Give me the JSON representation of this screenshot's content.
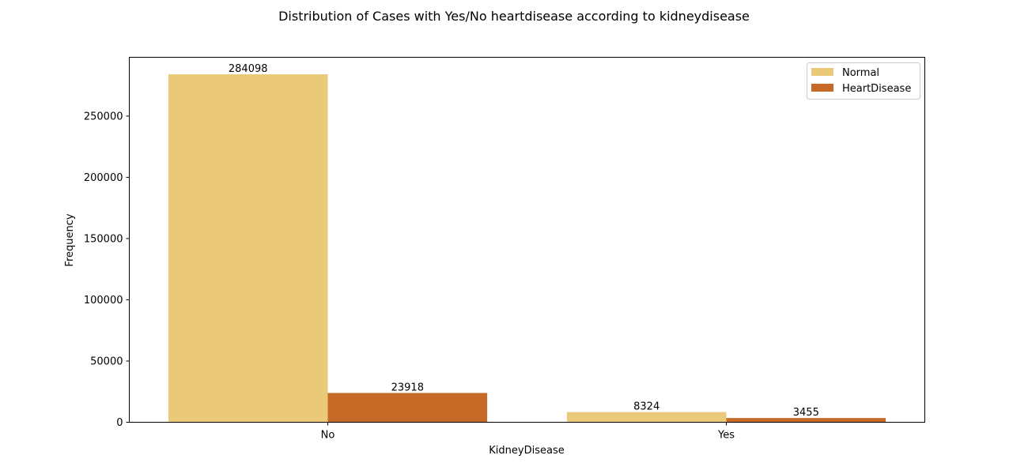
{
  "chart_data": {
    "type": "bar",
    "title": "Distribution of Cases with Yes/No heartdisease according to kidneydisease",
    "xlabel": "KidneyDisease",
    "ylabel": "Frequency",
    "categories": [
      "No",
      "Yes"
    ],
    "series": [
      {
        "name": "Normal",
        "color": "#EAC978",
        "values": [
          284098,
          8324
        ]
      },
      {
        "name": "HeartDisease",
        "color": "#C66A27",
        "values": [
          23918,
          3455
        ]
      }
    ],
    "ylim": [
      0,
      298000
    ],
    "yticks": [
      0,
      50000,
      100000,
      150000,
      200000,
      250000
    ],
    "ytick_labels": [
      "0",
      "50000",
      "100000",
      "150000",
      "200000",
      "250000"
    ],
    "data_labels": [
      [
        "284098",
        "8324"
      ],
      [
        "23918",
        "3455"
      ]
    ],
    "legend_position": "upper right",
    "grid": false
  }
}
